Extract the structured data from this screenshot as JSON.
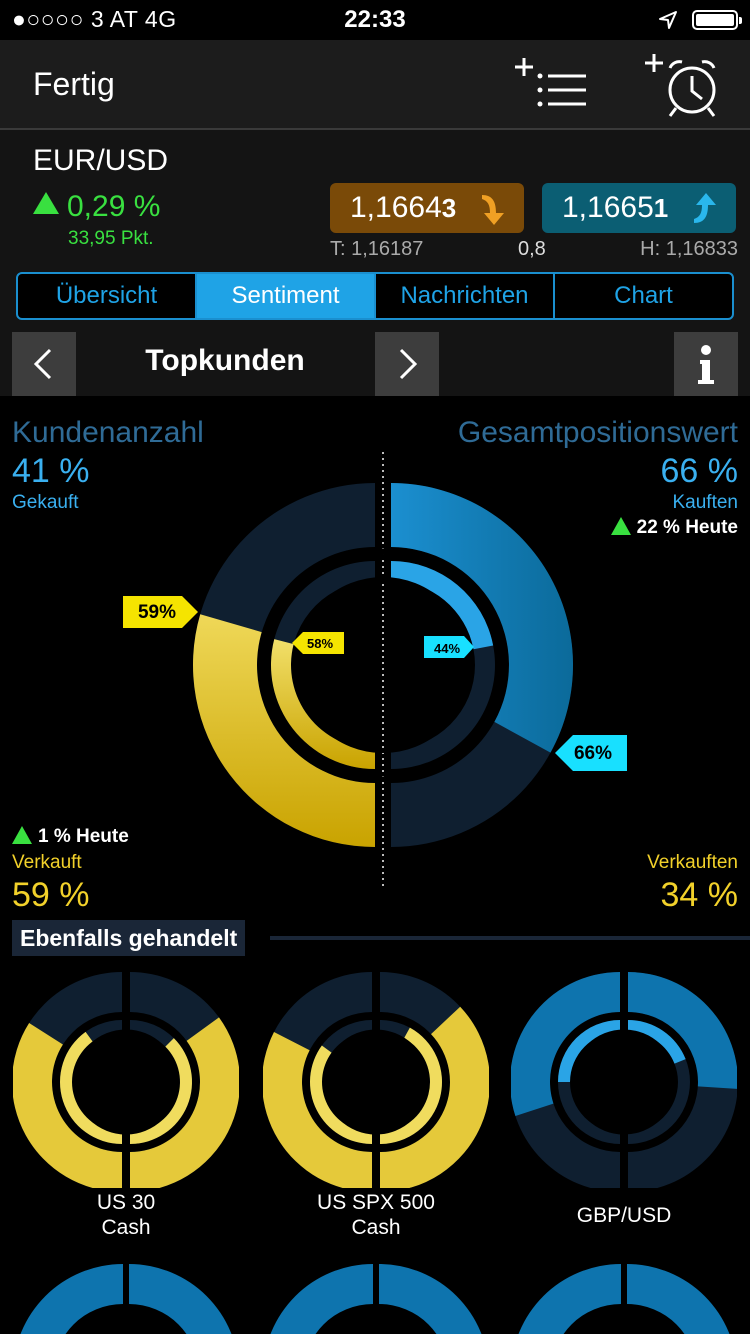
{
  "status_bar": {
    "carrier": "●○○○○ 3 AT   4G",
    "time": "22:33"
  },
  "nav": {
    "done_label": "Fertig",
    "add_watchlist_icon": "add-list-icon",
    "add_alarm_icon": "add-alarm-icon"
  },
  "instrument": {
    "name": "EUR/USD",
    "change_pct": "0,29 %",
    "change_pts": "33,95 Pkt.",
    "sell_price_main": "1,1664",
    "sell_price_last": "3",
    "buy_price_main": "1,1665",
    "buy_price_last": "1",
    "low": "T: 1,16187",
    "spread": "0,8",
    "high": "H: 1,16833",
    "colors": {
      "sell": "#7a4a08",
      "buy": "#0b5e73",
      "up": "#39e040"
    }
  },
  "tabs": [
    {
      "label": "Übersicht",
      "active": false
    },
    {
      "label": "Sentiment",
      "active": true
    },
    {
      "label": "Nachrichten",
      "active": false
    },
    {
      "label": "Chart",
      "active": false
    }
  ],
  "selector": {
    "title": "Topkunden"
  },
  "sentiment": {
    "left_title": "Kundenanzahl",
    "left_bought_pct": "41 %",
    "left_bought_label": "Gekauft",
    "left_today": "1 % Heute",
    "left_sold_label": "Verkauft",
    "left_sold_pct": "59 %",
    "right_title": "Gesamtpositionswert",
    "right_bought_pct": "66 %",
    "right_bought_label": "Kauften",
    "right_today": "22 % Heute",
    "right_sold_label": "Verkauften",
    "right_sold_pct": "34 %",
    "outer_left_callout": "59%",
    "inner_left_callout": "58%",
    "inner_right_callout": "44%",
    "outer_right_callout": "66%",
    "outer_left_sold": 0.59,
    "inner_left_sold": 0.58,
    "outer_right_bought": 0.66,
    "inner_right_bought": 0.44
  },
  "also_traded": {
    "title": "Ebenfalls gehandelt",
    "items": [
      {
        "line1": "US 30",
        "line2": "Cash",
        "left_outer": 0.68,
        "left_inner": 0.8,
        "right_outer": 0.7,
        "right_inner": 0.75,
        "color": "yellow"
      },
      {
        "line1": "US SPX 500",
        "line2": "Cash",
        "left_outer": 0.65,
        "left_inner": 0.7,
        "right_outer": 0.74,
        "right_inner": 0.84,
        "color": "yellow"
      },
      {
        "line1": "GBP/USD",
        "line2": "",
        "left_outer": 0.6,
        "left_inner": 0.5,
        "right_outer": 0.52,
        "right_inner": 0.38,
        "color": "blue"
      }
    ]
  }
}
